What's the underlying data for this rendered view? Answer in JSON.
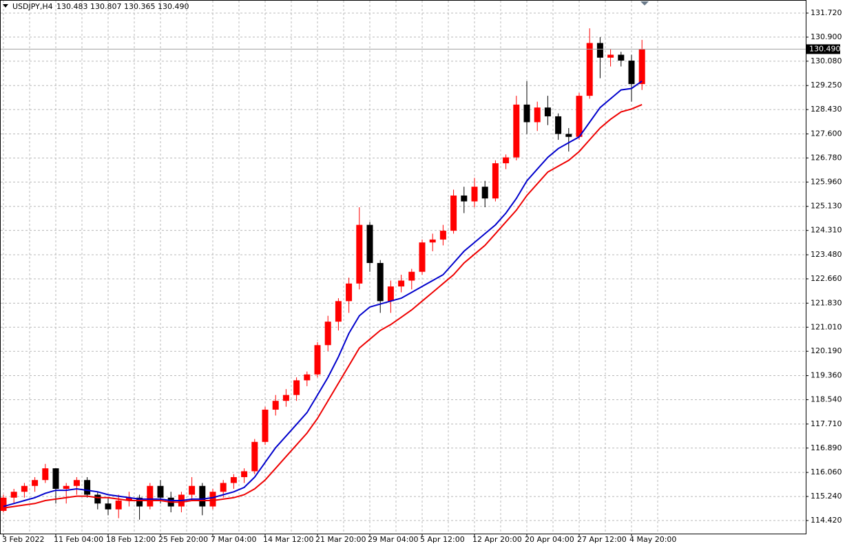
{
  "header": {
    "symbol": "USDJPY,H4",
    "quote": "130.483 130.807 130.365 130.490"
  },
  "chart_data": {
    "type": "candlestick",
    "categories": [
      "3 Feb 2022",
      null,
      null,
      null,
      null,
      "11 Feb 04:00",
      null,
      null,
      null,
      null,
      "18 Feb 12:00",
      null,
      null,
      null,
      null,
      "25 Feb 20:00",
      null,
      null,
      null,
      null,
      "7 Mar 04:00",
      null,
      null,
      null,
      null,
      "14 Mar 12:00",
      null,
      null,
      null,
      null,
      "21 Mar 20:00",
      null,
      null,
      null,
      null,
      "29 Mar 04:00",
      null,
      null,
      null,
      null,
      "5 Apr 12:00",
      null,
      null,
      null,
      null,
      "12 Apr 20:00",
      null,
      null,
      null,
      null,
      "20 Apr 04:00",
      null,
      null,
      null,
      null,
      "27 Apr 12:00",
      null,
      null,
      null,
      null,
      "4 May 20:00",
      null
    ],
    "open": [
      114.75,
      115.2,
      115.4,
      115.6,
      115.8,
      116.2,
      115.5,
      115.6,
      115.8,
      115.3,
      115.0,
      114.8,
      115.1,
      115.2,
      114.9,
      115.6,
      115.2,
      114.9,
      115.3,
      115.6,
      114.9,
      115.4,
      115.7,
      115.9,
      116.1,
      117.1,
      118.2,
      118.5,
      118.7,
      119.2,
      119.4,
      120.4,
      121.2,
      121.9,
      122.5,
      124.5,
      123.2,
      121.9,
      122.4,
      122.6,
      122.9,
      123.9,
      124.0,
      124.3,
      125.5,
      125.3,
      125.8,
      125.4,
      126.6,
      126.8,
      128.6,
      128.0,
      128.5,
      128.2,
      127.6,
      127.5,
      128.9,
      130.7,
      130.2,
      130.3,
      130.1,
      129.3
    ],
    "high": [
      115.3,
      115.5,
      115.7,
      115.9,
      116.35,
      116.2,
      115.7,
      115.9,
      115.9,
      115.4,
      115.2,
      115.3,
      115.4,
      115.3,
      115.7,
      115.8,
      115.4,
      115.4,
      115.9,
      115.7,
      115.5,
      115.8,
      116.0,
      116.2,
      117.2,
      118.3,
      118.7,
      118.9,
      119.3,
      119.5,
      120.5,
      121.4,
      122.0,
      122.7,
      125.1,
      124.6,
      123.3,
      122.6,
      122.8,
      123.0,
      124.0,
      124.2,
      124.5,
      125.7,
      125.8,
      126.1,
      126.0,
      126.7,
      126.9,
      128.9,
      129.4,
      128.7,
      128.9,
      128.3,
      127.8,
      129.0,
      131.2,
      130.9,
      130.5,
      130.4,
      130.3,
      130.807
    ],
    "low": [
      114.7,
      115.0,
      115.2,
      115.4,
      115.7,
      115.0,
      115.0,
      115.3,
      115.2,
      114.8,
      114.6,
      114.5,
      114.9,
      114.45,
      114.8,
      115.0,
      114.7,
      114.7,
      115.1,
      114.6,
      114.8,
      115.2,
      115.5,
      115.7,
      116.0,
      117.0,
      118.0,
      118.3,
      118.5,
      119.0,
      119.3,
      120.2,
      120.9,
      121.5,
      122.3,
      122.9,
      121.5,
      121.5,
      122.2,
      122.3,
      122.8,
      123.6,
      123.8,
      124.2,
      124.9,
      125.1,
      125.1,
      125.3,
      126.4,
      126.7,
      127.6,
      127.7,
      127.9,
      127.4,
      127.0,
      127.4,
      128.8,
      129.5,
      129.9,
      129.9,
      128.7,
      129.1
    ],
    "close": [
      115.2,
      115.4,
      115.6,
      115.8,
      116.2,
      115.5,
      115.6,
      115.8,
      115.3,
      115.0,
      114.8,
      115.1,
      115.2,
      114.9,
      115.6,
      115.2,
      114.9,
      115.3,
      115.6,
      114.9,
      115.4,
      115.7,
      115.9,
      116.1,
      117.1,
      118.2,
      118.5,
      118.7,
      119.2,
      119.4,
      120.4,
      121.2,
      121.9,
      122.5,
      124.5,
      123.2,
      121.9,
      122.4,
      122.6,
      122.9,
      123.9,
      124.0,
      124.3,
      125.5,
      125.3,
      125.8,
      125.4,
      126.6,
      126.8,
      128.6,
      128.0,
      128.5,
      128.2,
      127.6,
      127.5,
      128.9,
      130.7,
      130.2,
      130.3,
      130.1,
      129.3,
      130.49
    ],
    "up_color": "#ff0000",
    "down_color": "#000000",
    "lines": [
      {
        "color": "#0000cc",
        "values": [
          114.9,
          115.0,
          115.1,
          115.2,
          115.35,
          115.45,
          115.45,
          115.5,
          115.45,
          115.4,
          115.3,
          115.25,
          115.2,
          115.15,
          115.15,
          115.15,
          115.1,
          115.1,
          115.15,
          115.15,
          115.2,
          115.3,
          115.4,
          115.55,
          115.9,
          116.4,
          116.9,
          117.3,
          117.7,
          118.1,
          118.7,
          119.3,
          120.0,
          120.8,
          121.4,
          121.7,
          121.8,
          121.9,
          122.0,
          122.2,
          122.4,
          122.6,
          122.8,
          123.2,
          123.6,
          123.9,
          124.2,
          124.5,
          124.9,
          125.4,
          126.0,
          126.4,
          126.8,
          127.1,
          127.3,
          127.5,
          128.0,
          128.5,
          128.8,
          129.1,
          129.15,
          129.4
        ]
      },
      {
        "color": "#ee0000",
        "values": [
          114.85,
          114.9,
          114.95,
          115.0,
          115.1,
          115.15,
          115.2,
          115.25,
          115.25,
          115.2,
          115.2,
          115.15,
          115.1,
          115.1,
          115.1,
          115.1,
          115.05,
          115.05,
          115.1,
          115.1,
          115.1,
          115.15,
          115.2,
          115.3,
          115.5,
          115.8,
          116.2,
          116.6,
          117.0,
          117.4,
          117.9,
          118.5,
          119.1,
          119.7,
          120.3,
          120.6,
          120.9,
          121.1,
          121.35,
          121.6,
          121.9,
          122.2,
          122.5,
          122.8,
          123.2,
          123.5,
          123.8,
          124.2,
          124.6,
          125.0,
          125.5,
          125.9,
          126.3,
          126.5,
          126.7,
          127.0,
          127.4,
          127.8,
          128.1,
          128.35,
          128.45,
          128.6
        ]
      }
    ],
    "last_price": {
      "value": 130.49,
      "label": "130.490"
    },
    "ylim": [
      113.974,
      132.166
    ],
    "yticks": [
      {
        "value": 131.72,
        "label": "131.720"
      },
      {
        "value": 130.9,
        "label": "130.900"
      },
      {
        "value": 130.08,
        "label": "130.080"
      },
      {
        "value": 129.25,
        "label": "129.250"
      },
      {
        "value": 128.43,
        "label": "128.430"
      },
      {
        "value": 127.6,
        "label": "127.600"
      },
      {
        "value": 126.78,
        "label": "126.780"
      },
      {
        "value": 125.96,
        "label": "125.960"
      },
      {
        "value": 125.13,
        "label": "125.130"
      },
      {
        "value": 124.31,
        "label": "124.310"
      },
      {
        "value": 123.48,
        "label": "123.480"
      },
      {
        "value": 122.66,
        "label": "122.660"
      },
      {
        "value": 121.83,
        "label": "121.830"
      },
      {
        "value": 121.01,
        "label": "121.010"
      },
      {
        "value": 120.19,
        "label": "120.190"
      },
      {
        "value": 119.36,
        "label": "119.360"
      },
      {
        "value": 118.54,
        "label": "118.540"
      },
      {
        "value": 117.71,
        "label": "117.710"
      },
      {
        "value": 116.89,
        "label": "116.890"
      },
      {
        "value": 116.06,
        "label": "116.060"
      },
      {
        "value": 115.24,
        "label": "115.240"
      },
      {
        "value": 114.42,
        "label": "114.420"
      }
    ],
    "grid": true
  }
}
